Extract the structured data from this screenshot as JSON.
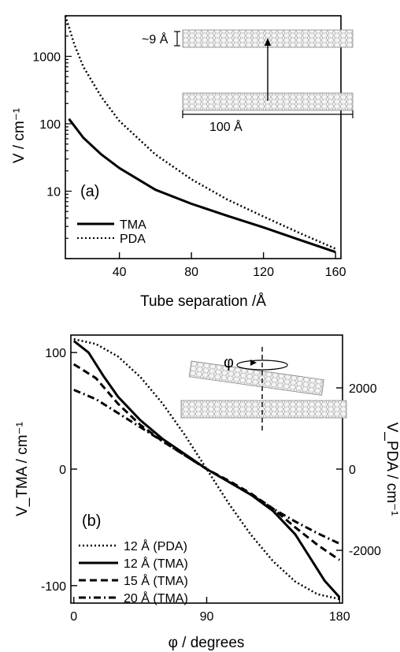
{
  "chart_data": [
    {
      "type": "line",
      "panel_label": "(a)",
      "xlabel": "Tube separation /Å",
      "ylabel": "V / cm⁻¹",
      "xlim": [
        10,
        163
      ],
      "ylim": [
        1.0,
        4000
      ],
      "yscale": "log",
      "xticks": [
        40,
        80,
        120,
        160
      ],
      "yticks": [
        10,
        100,
        1000
      ],
      "series": [
        {
          "name": "TMA",
          "style": "solid",
          "x": [
            12,
            20,
            30,
            40,
            60,
            80,
            100,
            120,
            140,
            160
          ],
          "y": [
            118,
            62,
            35,
            22,
            10.5,
            6.5,
            4.3,
            2.9,
            1.9,
            1.25
          ]
        },
        {
          "name": "PDA",
          "style": "dotted",
          "x": [
            10,
            15,
            20,
            30,
            40,
            60,
            80,
            100,
            120,
            140,
            160
          ],
          "y": [
            4000,
            1500,
            700,
            250,
            110,
            35,
            15,
            7.5,
            4.2,
            2.4,
            1.4
          ]
        }
      ],
      "inset": {
        "gap_label": "~9 Å",
        "length_label": "100 Å"
      }
    },
    {
      "type": "line",
      "panel_label": "(b)",
      "xlabel": "φ / degrees",
      "ylabel_left": "V_TMA / cm⁻¹",
      "ylabel_right": "V_PDA / cm⁻¹",
      "xlim": [
        -2,
        182
      ],
      "ylim_left": [
        -115,
        115
      ],
      "ylim_right": [
        -3300,
        3300
      ],
      "xticks": [
        0,
        90,
        180
      ],
      "yticks_left": [
        -100,
        0,
        100
      ],
      "yticks_right": [
        -2000,
        0,
        2000
      ],
      "series": [
        {
          "name": "12 Å (PDA)",
          "style": "dotted",
          "axis": "right",
          "x": [
            0,
            15,
            30,
            45,
            60,
            75,
            90,
            105,
            120,
            135,
            150,
            165,
            180
          ],
          "y": [
            3200,
            3080,
            2770,
            2270,
            1620,
            850,
            0,
            -850,
            -1620,
            -2270,
            -2770,
            -3080,
            -3200
          ]
        },
        {
          "name": "12 Å (TMA)",
          "style": "solid",
          "axis": "left",
          "x": [
            0,
            10,
            20,
            30,
            45,
            60,
            75,
            90,
            105,
            120,
            135,
            150,
            160,
            170,
            180
          ],
          "y": [
            110,
            100,
            80,
            62,
            42,
            26,
            13,
            0,
            -11,
            -22,
            -36,
            -56,
            -76,
            -96,
            -110
          ]
        },
        {
          "name": "15 Å (TMA)",
          "style": "dashed",
          "axis": "left",
          "x": [
            0,
            15,
            30,
            45,
            60,
            75,
            90,
            105,
            120,
            135,
            150,
            165,
            180
          ],
          "y": [
            90,
            78,
            56,
            38,
            24,
            12,
            0,
            -10,
            -21,
            -34,
            -50,
            -65,
            -78
          ]
        },
        {
          "name": "20 Å (TMA)",
          "style": "dashdot",
          "axis": "left",
          "x": [
            0,
            15,
            30,
            45,
            60,
            75,
            90,
            105,
            120,
            135,
            150,
            165,
            180
          ],
          "y": [
            68,
            60,
            48,
            36,
            24,
            12,
            0,
            -11,
            -22,
            -34,
            -45,
            -55,
            -64
          ]
        }
      ],
      "inset": {
        "angle_symbol": "φ"
      }
    }
  ]
}
